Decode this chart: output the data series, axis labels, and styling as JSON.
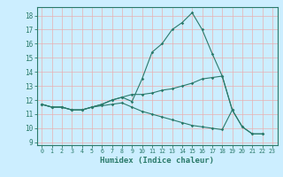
{
  "xlabel": "Humidex (Indice chaleur)",
  "bg_color": "#cceeff",
  "line_color": "#2a7a6a",
  "grid_color": "#e8b0b0",
  "xlim": [
    -0.5,
    23.5
  ],
  "ylim": [
    8.8,
    18.6
  ],
  "yticks": [
    9,
    10,
    11,
    12,
    13,
    14,
    15,
    16,
    17,
    18
  ],
  "xticks": [
    0,
    1,
    2,
    3,
    4,
    5,
    6,
    7,
    8,
    9,
    10,
    11,
    12,
    13,
    14,
    15,
    16,
    17,
    18,
    19,
    20,
    21,
    22,
    23
  ],
  "line1_x": [
    0,
    1,
    2,
    3,
    4,
    5,
    6,
    7,
    8,
    9,
    10,
    11,
    12,
    13,
    14,
    15,
    16,
    17,
    18,
    19,
    20,
    21,
    22
  ],
  "line1_y": [
    11.7,
    11.5,
    11.5,
    11.3,
    11.3,
    11.5,
    11.7,
    12.0,
    12.2,
    11.9,
    13.5,
    15.4,
    16.0,
    17.0,
    17.5,
    18.2,
    17.0,
    15.3,
    13.7,
    11.3,
    10.1,
    9.6,
    9.6
  ],
  "line2_x": [
    0,
    1,
    2,
    3,
    4,
    5,
    6,
    7,
    8,
    9,
    10,
    11,
    12,
    13,
    14,
    15,
    16,
    17,
    18,
    19
  ],
  "line2_y": [
    11.7,
    11.5,
    11.5,
    11.3,
    11.3,
    11.5,
    11.7,
    12.0,
    12.2,
    12.4,
    12.4,
    12.5,
    12.7,
    12.8,
    13.0,
    13.2,
    13.5,
    13.6,
    13.7,
    11.3
  ],
  "line3_x": [
    0,
    1,
    2,
    3,
    4,
    5,
    6,
    7,
    8,
    9,
    10,
    11,
    12,
    13,
    14,
    15,
    16,
    17,
    18,
    19,
    20,
    21,
    22
  ],
  "line3_y": [
    11.7,
    11.5,
    11.5,
    11.3,
    11.3,
    11.5,
    11.6,
    11.7,
    11.8,
    11.5,
    11.2,
    11.0,
    10.8,
    10.6,
    10.4,
    10.2,
    10.1,
    10.0,
    9.9,
    11.3,
    10.1,
    9.6,
    9.6
  ]
}
